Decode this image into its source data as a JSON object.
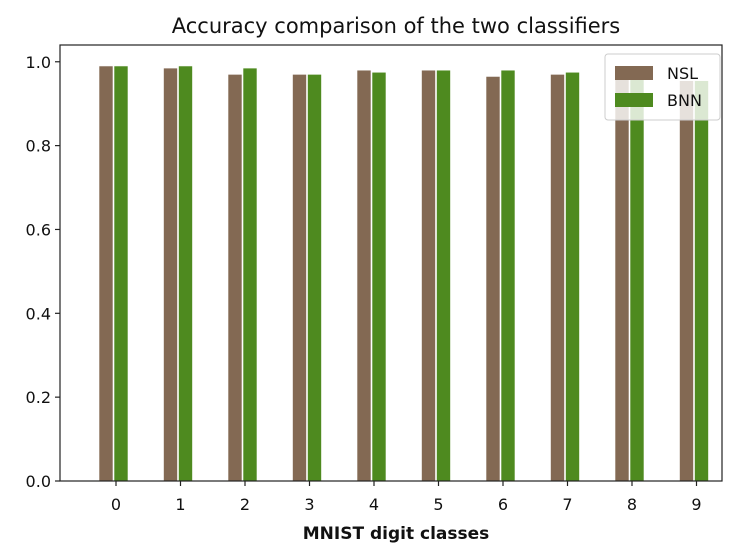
{
  "chart_data": {
    "type": "bar",
    "title": "Accuracy comparison of the two classifiers",
    "xlabel": "MNIST digit classes",
    "ylabel": "",
    "categories": [
      "0",
      "1",
      "2",
      "3",
      "4",
      "5",
      "6",
      "7",
      "8",
      "9"
    ],
    "series": [
      {
        "name": "NSL",
        "color": "#836953",
        "values": [
          0.99,
          0.985,
          0.97,
          0.97,
          0.98,
          0.98,
          0.965,
          0.97,
          0.96,
          0.955
        ]
      },
      {
        "name": "BNN",
        "color": "#4e8a1f",
        "values": [
          0.99,
          0.99,
          0.985,
          0.97,
          0.975,
          0.98,
          0.98,
          0.975,
          0.96,
          0.955
        ]
      }
    ],
    "ylim": [
      0,
      1.04
    ],
    "yticks": [
      "0.0",
      "0.2",
      "0.4",
      "0.6",
      "0.8",
      "1.0"
    ],
    "legend_position": "top-right",
    "grid": false
  }
}
